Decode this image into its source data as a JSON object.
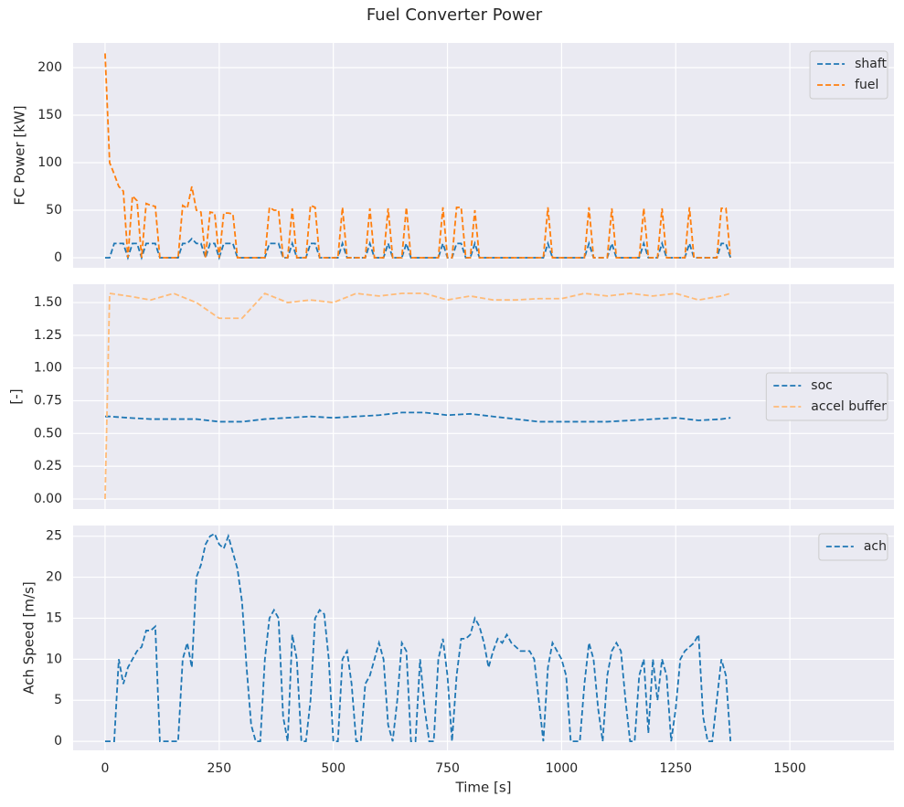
{
  "title": "Fuel Converter Power",
  "chart_data": [
    {
      "type": "line",
      "ylabel": "FC Power [kW]",
      "legend": "upper right",
      "line_style": "dashed",
      "grid": true,
      "xlim": [
        -70,
        1728
      ],
      "xticks": [
        0,
        250,
        500,
        750,
        1000,
        1250,
        1500
      ],
      "ylim": [
        -10.6,
        226
      ],
      "yticks": [
        0,
        50,
        100,
        150,
        200
      ],
      "x": [
        0,
        10,
        20,
        30,
        40,
        50,
        60,
        70,
        80,
        90,
        100,
        110,
        120,
        130,
        140,
        150,
        160,
        170,
        180,
        190,
        200,
        210,
        220,
        230,
        240,
        250,
        260,
        270,
        280,
        290,
        300,
        310,
        320,
        330,
        340,
        350,
        360,
        370,
        380,
        390,
        400,
        410,
        420,
        430,
        440,
        450,
        460,
        470,
        480,
        490,
        500,
        510,
        520,
        530,
        540,
        550,
        560,
        570,
        580,
        590,
        600,
        610,
        620,
        630,
        640,
        650,
        660,
        670,
        680,
        690,
        700,
        710,
        720,
        730,
        740,
        750,
        760,
        770,
        780,
        790,
        800,
        810,
        820,
        830,
        840,
        850,
        860,
        870,
        880,
        890,
        900,
        910,
        920,
        930,
        940,
        950,
        960,
        970,
        980,
        990,
        1000,
        1010,
        1020,
        1030,
        1040,
        1050,
        1060,
        1070,
        1080,
        1090,
        1100,
        1110,
        1120,
        1130,
        1140,
        1150,
        1160,
        1170,
        1180,
        1190,
        1200,
        1210,
        1220,
        1230,
        1240,
        1250,
        1260,
        1270,
        1280,
        1290,
        1300,
        1310,
        1320,
        1330,
        1340,
        1350,
        1360,
        1370
      ],
      "series": [
        {
          "name": "shaft",
          "color": "#1f77b4",
          "values": [
            0,
            0,
            15,
            15,
            15,
            0,
            15,
            15,
            0,
            15,
            15,
            15,
            0,
            0,
            0,
            0,
            0,
            15,
            15,
            20,
            15,
            15,
            0,
            15,
            15,
            0,
            15,
            15,
            15,
            0,
            0,
            0,
            0,
            0,
            0,
            0,
            15,
            15,
            15,
            0,
            0,
            15,
            0,
            0,
            0,
            15,
            15,
            0,
            0,
            0,
            0,
            0,
            15,
            0,
            0,
            0,
            0,
            0,
            15,
            0,
            0,
            0,
            15,
            0,
            0,
            0,
            15,
            0,
            0,
            0,
            0,
            0,
            0,
            0,
            15,
            0,
            0,
            15,
            15,
            0,
            0,
            15,
            0,
            0,
            0,
            0,
            0,
            0,
            0,
            0,
            0,
            0,
            0,
            0,
            0,
            0,
            0,
            15,
            0,
            0,
            0,
            0,
            0,
            0,
            0,
            0,
            15,
            0,
            0,
            0,
            0,
            15,
            0,
            0,
            0,
            0,
            0,
            0,
            15,
            0,
            0,
            0,
            15,
            0,
            0,
            0,
            0,
            0,
            15,
            0,
            0,
            0,
            0,
            0,
            0,
            15,
            15,
            0
          ]
        },
        {
          "name": "fuel",
          "color": "#ff7f0e",
          "values": [
            215,
            100,
            88,
            75,
            70,
            0,
            65,
            60,
            0,
            57,
            55,
            54,
            0,
            0,
            0,
            0,
            0,
            55,
            52,
            75,
            50,
            48,
            0,
            48,
            47,
            0,
            47,
            47,
            46,
            0,
            0,
            0,
            0,
            0,
            0,
            0,
            53,
            50,
            50,
            0,
            0,
            52,
            0,
            0,
            0,
            55,
            53,
            0,
            0,
            0,
            0,
            0,
            53,
            0,
            0,
            0,
            0,
            0,
            52,
            0,
            0,
            0,
            52,
            0,
            0,
            0,
            53,
            0,
            0,
            0,
            0,
            0,
            0,
            0,
            53,
            0,
            0,
            53,
            53,
            0,
            0,
            50,
            0,
            0,
            0,
            0,
            0,
            0,
            0,
            0,
            0,
            0,
            0,
            0,
            0,
            0,
            0,
            53,
            0,
            0,
            0,
            0,
            0,
            0,
            0,
            0,
            53,
            0,
            0,
            0,
            0,
            52,
            0,
            0,
            0,
            0,
            0,
            0,
            52,
            0,
            0,
            0,
            52,
            0,
            0,
            0,
            0,
            0,
            53,
            0,
            0,
            0,
            0,
            0,
            0,
            52,
            52,
            0
          ]
        }
      ]
    },
    {
      "type": "line",
      "ylabel": "[-]",
      "legend": "center right",
      "line_style": "dashed",
      "grid": true,
      "xlim": [
        -70,
        1728
      ],
      "xticks": [
        0,
        250,
        500,
        750,
        1000,
        1250,
        1500
      ],
      "ylim": [
        -0.077,
        1.64
      ],
      "yticks": [
        {
          "value": 0,
          "label": "0.00"
        },
        {
          "value": 0.25,
          "label": "0.25"
        },
        {
          "value": 0.5,
          "label": "0.50"
        },
        {
          "value": 0.75,
          "label": "0.75"
        },
        {
          "value": 1,
          "label": "1.00"
        },
        {
          "value": 1.25,
          "label": "1.25"
        },
        {
          "value": 1.5,
          "label": "1.50"
        }
      ],
      "x": [
        0,
        10,
        50,
        100,
        150,
        200,
        250,
        300,
        350,
        400,
        450,
        500,
        550,
        600,
        650,
        700,
        750,
        800,
        850,
        900,
        950,
        1000,
        1050,
        1100,
        1150,
        1200,
        1250,
        1300,
        1350,
        1370
      ],
      "series": [
        {
          "name": "soc",
          "color": "#1f77b4",
          "values": [
            0.63,
            0.63,
            0.62,
            0.61,
            0.61,
            0.61,
            0.59,
            0.59,
            0.61,
            0.62,
            0.63,
            0.62,
            0.63,
            0.64,
            0.66,
            0.66,
            0.64,
            0.65,
            0.63,
            0.61,
            0.59,
            0.59,
            0.59,
            0.59,
            0.6,
            0.61,
            0.62,
            0.6,
            0.61,
            0.62
          ]
        },
        {
          "name": "accel buffer",
          "color": "#ffbb78",
          "values": [
            0,
            1.57,
            1.55,
            1.52,
            1.57,
            1.5,
            1.38,
            1.38,
            1.57,
            1.5,
            1.52,
            1.5,
            1.57,
            1.55,
            1.57,
            1.57,
            1.52,
            1.55,
            1.52,
            1.52,
            1.53,
            1.53,
            1.57,
            1.55,
            1.57,
            1.55,
            1.57,
            1.52,
            1.55,
            1.57
          ]
        }
      ]
    },
    {
      "type": "line",
      "ylabel": "Ach Speed [m/s]",
      "xlabel": "Time [s]",
      "legend": "upper right",
      "line_style": "dashed",
      "grid": true,
      "xlim": [
        -70,
        1728
      ],
      "xticks": [
        0,
        250,
        500,
        750,
        1000,
        1250,
        1500
      ],
      "ylim": [
        -1.1,
        26.3
      ],
      "yticks": [
        0,
        5,
        10,
        15,
        20,
        25
      ],
      "x": [
        0,
        10,
        20,
        30,
        40,
        50,
        60,
        70,
        80,
        90,
        100,
        110,
        120,
        130,
        140,
        150,
        160,
        170,
        180,
        190,
        200,
        210,
        220,
        230,
        240,
        250,
        260,
        270,
        280,
        290,
        300,
        310,
        320,
        330,
        340,
        350,
        360,
        370,
        380,
        390,
        400,
        410,
        420,
        430,
        440,
        450,
        460,
        470,
        480,
        490,
        500,
        510,
        520,
        530,
        540,
        550,
        560,
        570,
        580,
        590,
        600,
        610,
        620,
        630,
        640,
        650,
        660,
        670,
        680,
        690,
        700,
        710,
        720,
        730,
        740,
        750,
        760,
        770,
        780,
        790,
        800,
        810,
        820,
        830,
        840,
        850,
        860,
        870,
        880,
        890,
        900,
        910,
        920,
        930,
        940,
        950,
        960,
        970,
        980,
        990,
        1000,
        1010,
        1020,
        1030,
        1040,
        1050,
        1060,
        1070,
        1080,
        1090,
        1100,
        1110,
        1120,
        1130,
        1140,
        1150,
        1160,
        1170,
        1180,
        1190,
        1200,
        1210,
        1220,
        1230,
        1240,
        1250,
        1260,
        1270,
        1280,
        1290,
        1300,
        1310,
        1320,
        1330,
        1340,
        1350,
        1360,
        1370
      ],
      "series": [
        {
          "name": "ach",
          "color": "#1f77b4",
          "values": [
            0,
            0,
            0,
            10,
            7,
            9,
            10,
            11,
            11.5,
            13.5,
            13.5,
            14,
            0,
            0,
            0,
            0,
            0,
            10,
            12,
            9,
            20,
            21.5,
            24,
            25,
            25.3,
            24,
            23.5,
            25,
            23,
            21,
            17,
            9,
            2,
            0,
            0,
            10,
            15,
            16,
            15,
            3,
            0,
            13,
            10,
            0,
            0,
            5,
            15,
            16,
            15.5,
            10,
            0,
            0,
            10,
            11,
            7,
            0,
            0,
            7,
            8,
            10,
            12,
            10,
            2,
            0,
            5,
            12,
            11,
            0,
            0,
            10,
            4,
            0,
            0,
            10,
            12.5,
            8,
            0,
            8,
            12.5,
            12.5,
            13,
            15,
            14,
            12,
            9,
            11,
            12.5,
            12,
            13,
            12,
            11.5,
            11,
            11,
            11,
            10,
            5,
            0,
            9,
            12,
            11,
            10,
            8,
            0,
            0,
            0,
            7,
            12,
            10,
            4,
            0,
            8,
            11,
            12,
            11,
            5,
            0,
            0,
            8,
            10,
            1,
            10,
            5,
            10,
            8,
            0,
            4,
            10,
            11,
            11.5,
            12,
            13,
            3,
            0,
            0,
            5,
            10,
            8,
            0
          ]
        }
      ]
    }
  ]
}
